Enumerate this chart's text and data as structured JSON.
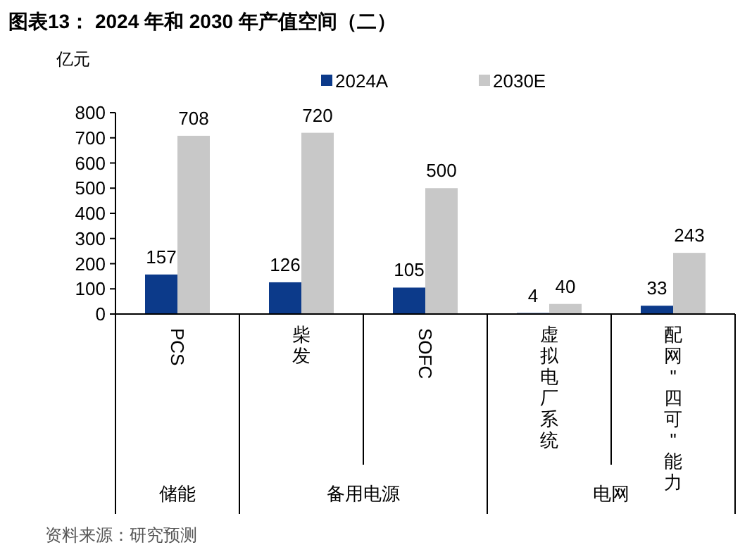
{
  "chart_data": {
    "type": "bar",
    "title": "图表13： 2024 年和 2030 年产值空间（二）",
    "ylabel": "亿元",
    "categories": [
      "PCS",
      "柴发",
      "SOFC",
      "虚拟电厂系统",
      "配网\"四可\"能力"
    ],
    "series": [
      {
        "name": "2024A",
        "color": "#0c3a8a",
        "values": [
          157,
          126,
          105,
          4,
          33
        ]
      },
      {
        "name": "2030E",
        "color": "#c8c8c8",
        "values": [
          708,
          720,
          500,
          40,
          243
        ]
      }
    ],
    "ylim": [
      0,
      800
    ],
    "yticks": [
      0,
      100,
      200,
      300,
      400,
      500,
      600,
      700,
      800
    ],
    "grid": false,
    "legend": "top",
    "data_labels": true,
    "annotations": [
      "储能",
      "备用电源",
      "电网",
      "资料来源：研究预测"
    ]
  }
}
